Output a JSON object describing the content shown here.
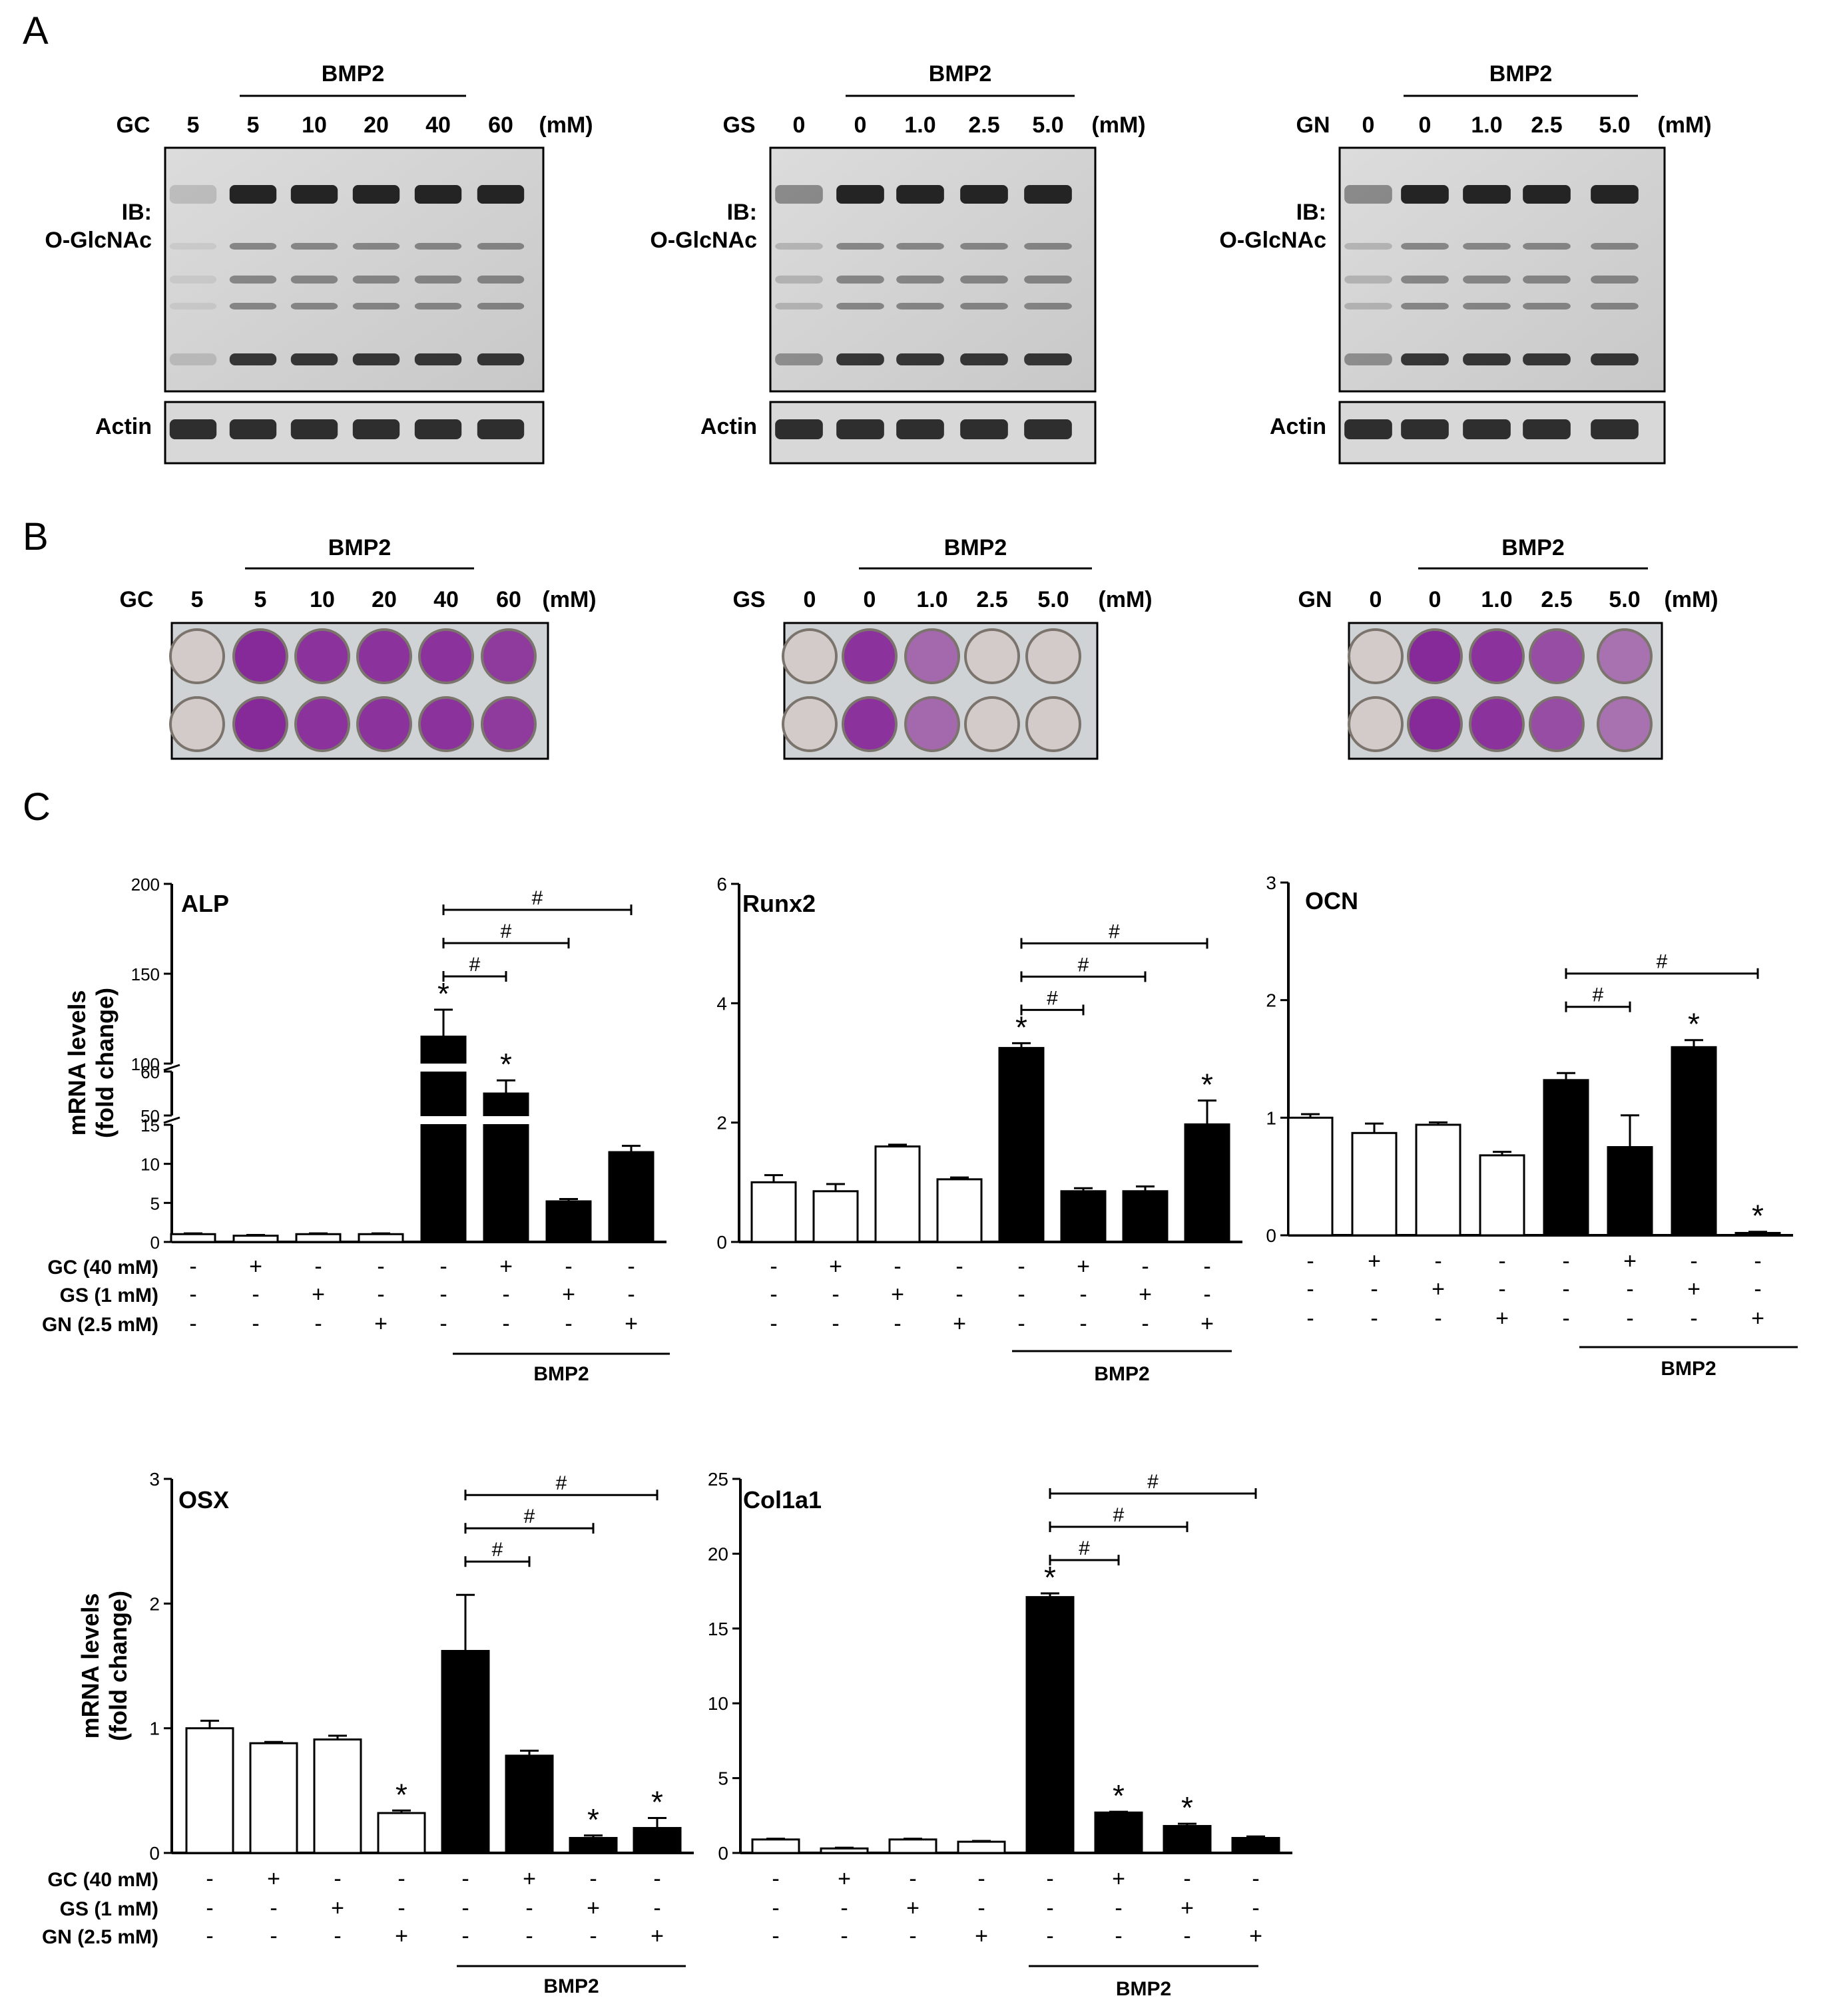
{
  "panels": {
    "a": "A",
    "b": "B",
    "c": "C"
  },
  "blots": [
    {
      "reagent": "GC",
      "treatment": "BMP2",
      "unit": "(mM)",
      "lanes": [
        "5",
        "5",
        "10",
        "20",
        "40",
        "60"
      ],
      "ib_label": [
        "IB:",
        "O-GlcNAc"
      ],
      "loading": "Actin"
    },
    {
      "reagent": "GS",
      "treatment": "BMP2",
      "unit": "(mM)",
      "lanes": [
        "0",
        "0",
        "1.0",
        "2.5",
        "5.0"
      ],
      "ib_label": [
        "IB:",
        "O-GlcNAc"
      ],
      "loading": "Actin"
    },
    {
      "reagent": "GN",
      "treatment": "BMP2",
      "unit": "(mM)",
      "lanes": [
        "0",
        "0",
        "1.0",
        "2.5",
        "5.0"
      ],
      "ib_label": [
        "IB:",
        "O-GlcNAc"
      ],
      "loading": "Actin"
    }
  ],
  "plates": [
    {
      "reagent": "GC",
      "treatment": "BMP2",
      "unit": "(mM)",
      "lanes": [
        "5",
        "5",
        "10",
        "20",
        "40",
        "60"
      ],
      "stain_levels": [
        0.05,
        0.95,
        0.9,
        0.9,
        0.9,
        0.85
      ]
    },
    {
      "reagent": "GS",
      "treatment": "BMP2",
      "unit": "(mM)",
      "lanes": [
        "0",
        "0",
        "1.0",
        "2.5",
        "5.0"
      ],
      "stain_levels": [
        0.05,
        0.9,
        0.6,
        0.05,
        0.05
      ]
    },
    {
      "reagent": "GN",
      "treatment": "BMP2",
      "unit": "(mM)",
      "lanes": [
        "0",
        "0",
        "1.0",
        "2.5",
        "5.0"
      ],
      "stain_levels": [
        0.05,
        0.95,
        0.9,
        0.75,
        0.55
      ]
    }
  ],
  "treatment_rows": [
    {
      "label": "GC (40 mM)",
      "signs": [
        "-",
        "+",
        "-",
        "-",
        "-",
        "+",
        "-",
        "-"
      ]
    },
    {
      "label": "GS (1 mM)",
      "signs": [
        "-",
        "-",
        "+",
        "-",
        "-",
        "-",
        "+",
        "-"
      ]
    },
    {
      "label": "GN (2.5 mM)",
      "signs": [
        "-",
        "-",
        "-",
        "+",
        "-",
        "-",
        "-",
        "+"
      ]
    }
  ],
  "bmp2_label": "BMP2",
  "ylabel": [
    "mRNA levels",
    "(fold change)"
  ],
  "chart_data": [
    {
      "type": "bar",
      "title": "ALP",
      "values": [
        1,
        0.8,
        1,
        1,
        115,
        55,
        5.2,
        11.5
      ],
      "errors": [
        0.1,
        0.1,
        0.1,
        0.1,
        15,
        3,
        0.3,
        0.8
      ],
      "fills": [
        "white",
        "white",
        "white",
        "white",
        "black",
        "black",
        "black",
        "black"
      ],
      "asterisks": [
        false,
        false,
        false,
        false,
        true,
        true,
        false,
        false
      ],
      "brackets": [
        {
          "from": 4,
          "to": 5,
          "label": "#"
        },
        {
          "from": 4,
          "to": 6,
          "label": "#"
        },
        {
          "from": 4,
          "to": 7,
          "label": "#"
        }
      ],
      "axis_breaks": true,
      "yticks": [
        "0",
        "5",
        "10",
        "15",
        "50",
        "60",
        "100",
        "150",
        "200"
      ]
    },
    {
      "type": "bar",
      "title": "Runx2",
      "values": [
        1.0,
        0.85,
        1.6,
        1.05,
        3.25,
        0.85,
        0.85,
        1.97
      ],
      "errors": [
        0.12,
        0.12,
        0.03,
        0.03,
        0.08,
        0.05,
        0.08,
        0.4
      ],
      "fills": [
        "white",
        "white",
        "white",
        "white",
        "black",
        "black",
        "black",
        "black"
      ],
      "asterisks": [
        false,
        false,
        false,
        false,
        true,
        false,
        false,
        true
      ],
      "brackets": [
        {
          "from": 4,
          "to": 5,
          "label": "#"
        },
        {
          "from": 4,
          "to": 6,
          "label": "#"
        },
        {
          "from": 4,
          "to": 7,
          "label": "#"
        }
      ],
      "ylim": [
        0,
        6
      ],
      "yticks": [
        0,
        2,
        4,
        6
      ]
    },
    {
      "type": "bar",
      "title": "OCN",
      "values": [
        1.0,
        0.87,
        0.94,
        0.68,
        1.32,
        0.75,
        1.6,
        0.02
      ],
      "errors": [
        0.03,
        0.08,
        0.02,
        0.03,
        0.06,
        0.27,
        0.06,
        0.01
      ],
      "fills": [
        "white",
        "white",
        "white",
        "white",
        "black",
        "black",
        "black",
        "black"
      ],
      "asterisks": [
        false,
        false,
        false,
        false,
        false,
        false,
        true,
        true
      ],
      "brackets": [
        {
          "from": 4,
          "to": 5,
          "label": "#"
        },
        {
          "from": 4,
          "to": 7,
          "label": "#"
        }
      ],
      "ylim": [
        0,
        3
      ],
      "yticks": [
        0,
        1,
        2,
        3
      ]
    },
    {
      "type": "bar",
      "title": "OSX",
      "values": [
        1.0,
        0.88,
        0.91,
        0.32,
        1.62,
        0.78,
        0.12,
        0.2
      ],
      "errors": [
        0.06,
        0.01,
        0.03,
        0.02,
        0.45,
        0.04,
        0.02,
        0.08
      ],
      "fills": [
        "white",
        "white",
        "white",
        "white",
        "black",
        "black",
        "black",
        "black"
      ],
      "asterisks": [
        false,
        false,
        false,
        true,
        false,
        false,
        true,
        true
      ],
      "brackets": [
        {
          "from": 4,
          "to": 5,
          "label": "#"
        },
        {
          "from": 4,
          "to": 6,
          "label": "#"
        },
        {
          "from": 4,
          "to": 7,
          "label": "#"
        }
      ],
      "ylim": [
        0,
        3
      ],
      "yticks": [
        0,
        1,
        2,
        3
      ]
    },
    {
      "type": "bar",
      "title": "Col1a1",
      "values": [
        0.9,
        0.3,
        0.9,
        0.75,
        17.1,
        2.7,
        1.8,
        1.0
      ],
      "errors": [
        0.05,
        0.05,
        0.05,
        0.05,
        0.25,
        0.05,
        0.15,
        0.1
      ],
      "fills": [
        "white",
        "white",
        "white",
        "white",
        "black",
        "black",
        "black",
        "black"
      ],
      "asterisks": [
        false,
        false,
        false,
        false,
        true,
        true,
        true,
        false
      ],
      "brackets": [
        {
          "from": 4,
          "to": 5,
          "label": "#"
        },
        {
          "from": 4,
          "to": 6,
          "label": "#"
        },
        {
          "from": 4,
          "to": 7,
          "label": "#"
        }
      ],
      "ylim": [
        0,
        25
      ],
      "yticks": [
        0,
        5,
        10,
        15,
        20,
        25
      ]
    }
  ]
}
